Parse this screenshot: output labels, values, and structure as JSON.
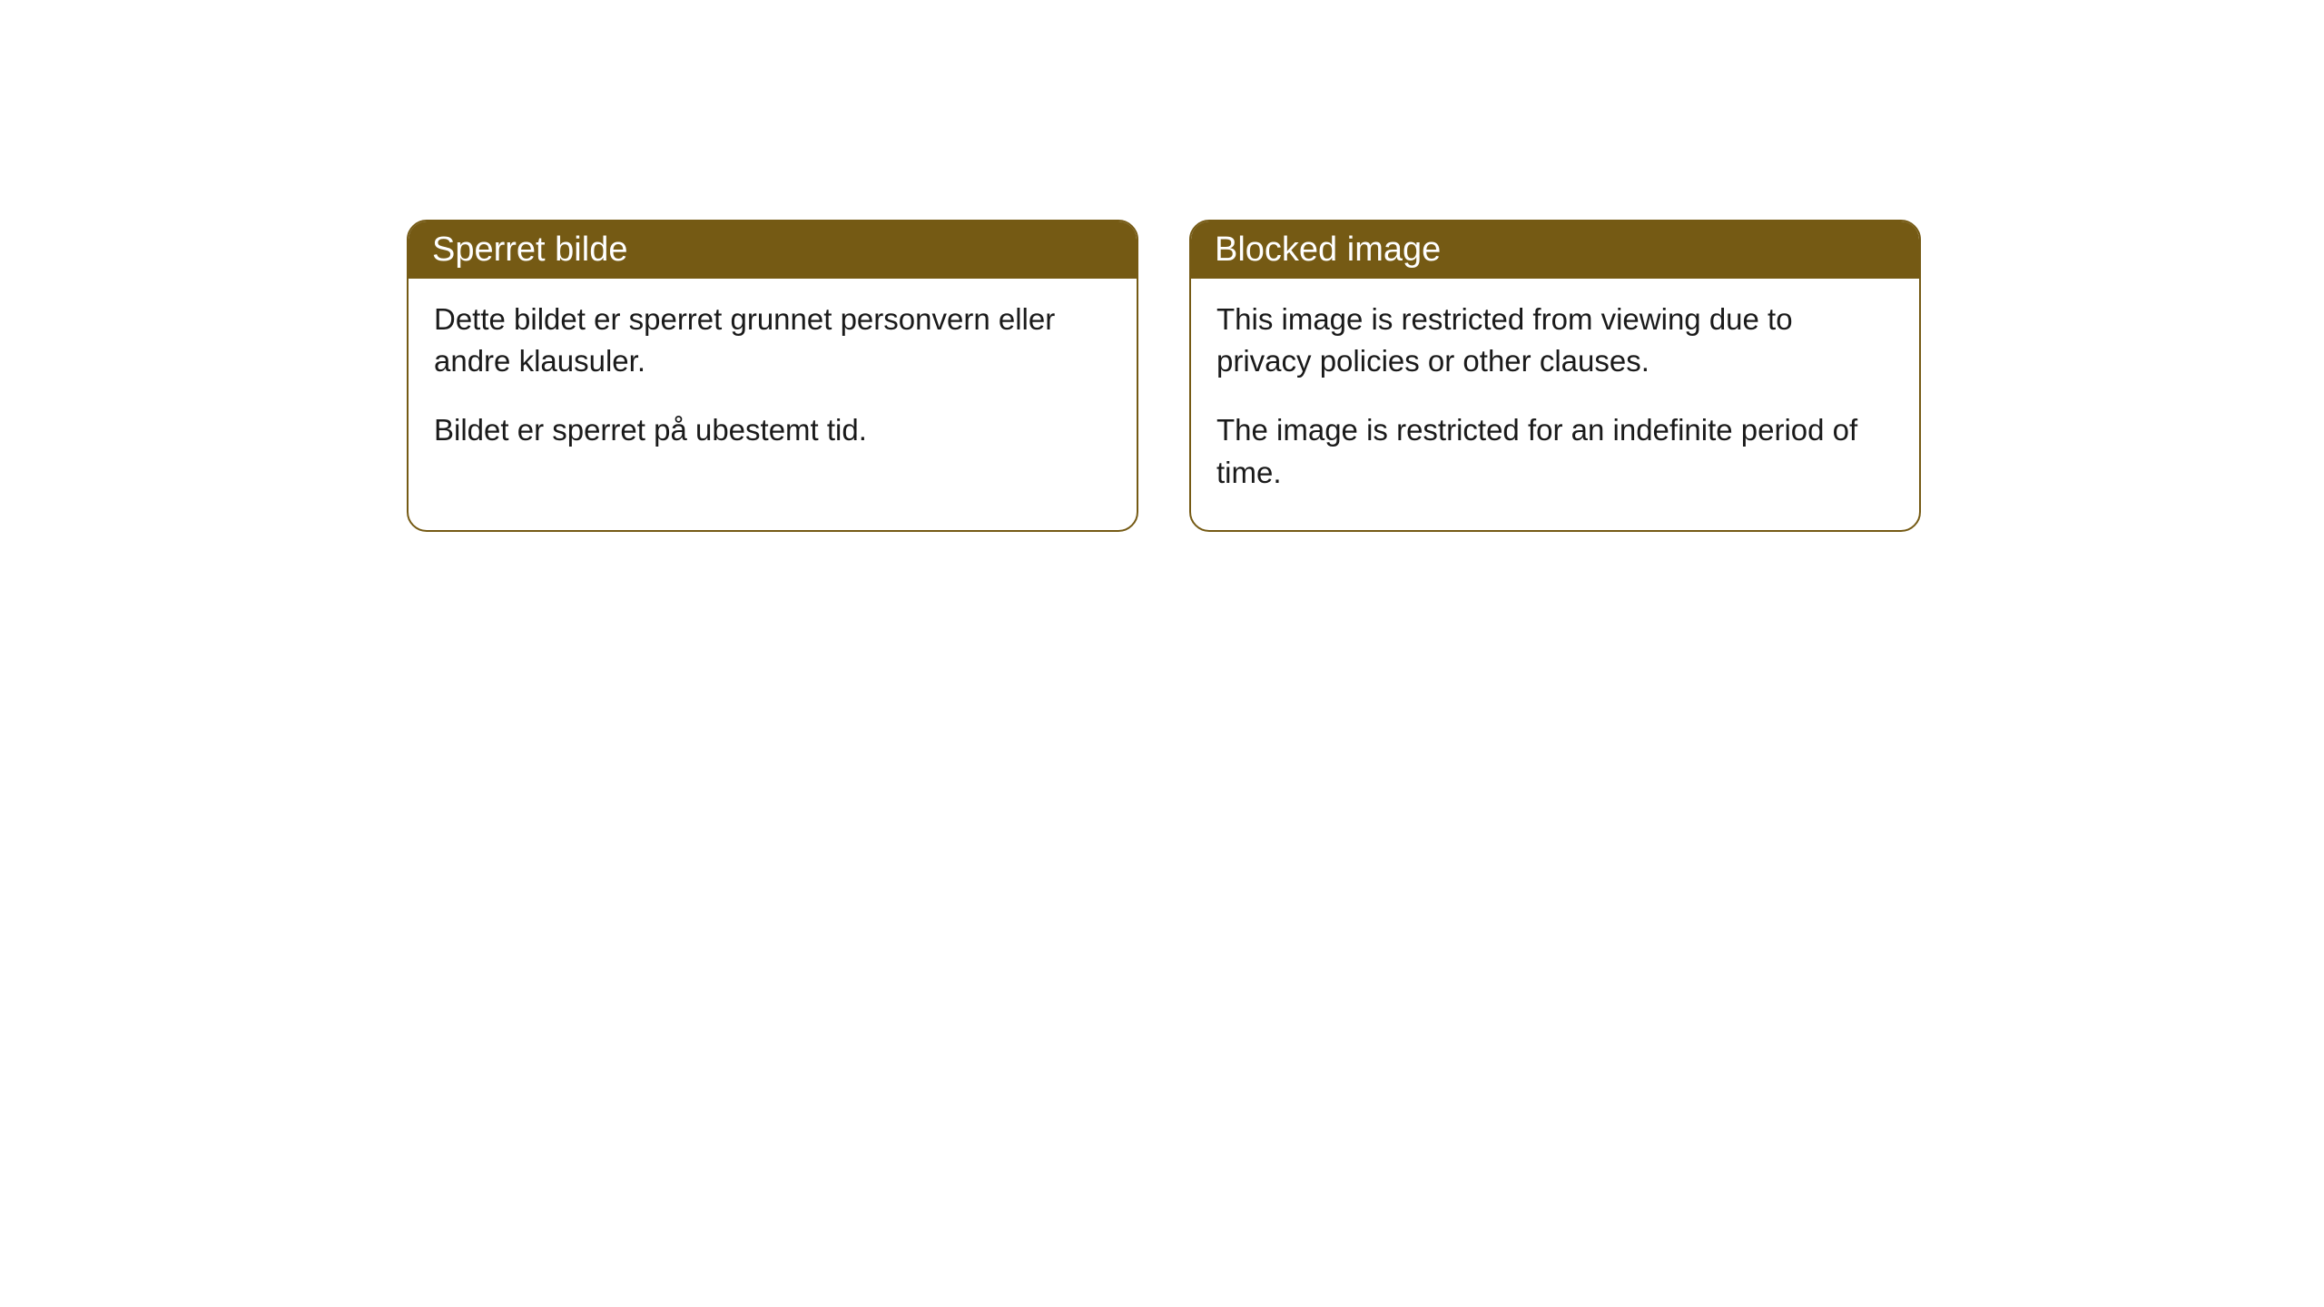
{
  "cards": [
    {
      "title": "Sperret bilde",
      "paragraph1": "Dette bildet er sperret grunnet personvern eller andre klausuler.",
      "paragraph2": "Bildet er sperret på ubestemt tid."
    },
    {
      "title": "Blocked image",
      "paragraph1": "This image is restricted from viewing due to privacy policies or other clauses.",
      "paragraph2": "The image is restricted for an indefinite period of time."
    }
  ],
  "style": {
    "header_bg_color": "#755a14",
    "header_text_color": "#ffffff",
    "border_color": "#755a14",
    "body_bg_color": "#ffffff",
    "body_text_color": "#1a1a1a",
    "border_radius": 22,
    "header_fontsize": 38,
    "body_fontsize": 33
  }
}
